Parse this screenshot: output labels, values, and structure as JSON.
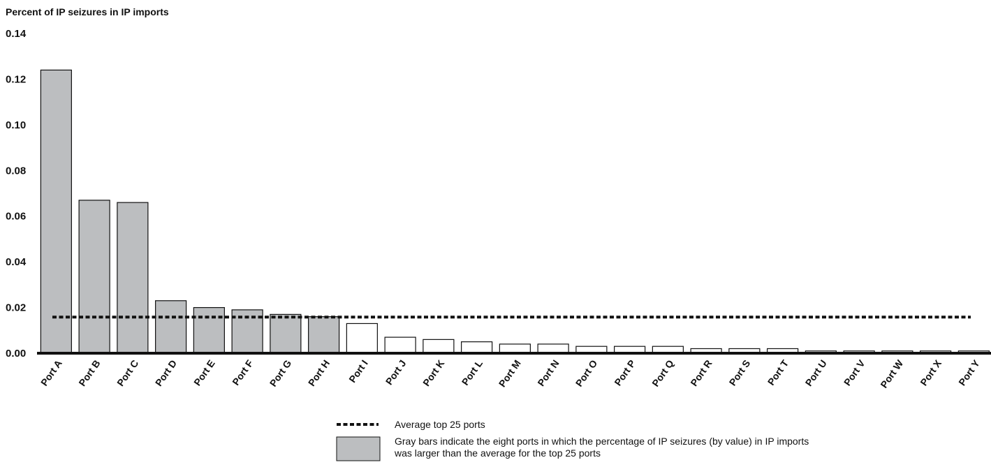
{
  "chart_data": {
    "type": "bar",
    "ylabel": "Percent of IP seizures in IP imports",
    "ylim": [
      0,
      0.14
    ],
    "y_ticks": [
      "0.00",
      "0.02",
      "0.04",
      "0.06",
      "0.08",
      "0.10",
      "0.12",
      "0.14"
    ],
    "categories": [
      "Port A",
      "Port B",
      "Port C",
      "Port D",
      "Port E",
      "Port F",
      "Port G",
      "Port H",
      "Port I",
      "Port J",
      "Port K",
      "Port L",
      "Port M",
      "Port N",
      "Port O",
      "Port P",
      "Port Q",
      "Port R",
      "Port S",
      "Port T",
      "Port U",
      "Port V",
      "Port W",
      "Port X",
      "Port Y"
    ],
    "values": [
      0.124,
      0.067,
      0.066,
      0.023,
      0.02,
      0.019,
      0.017,
      0.016,
      0.013,
      0.007,
      0.006,
      0.005,
      0.004,
      0.004,
      0.003,
      0.003,
      0.003,
      0.002,
      0.002,
      0.002,
      0.001,
      0.001,
      0.001,
      0.001,
      0.001
    ],
    "highlighted": [
      true,
      true,
      true,
      true,
      true,
      true,
      true,
      true,
      false,
      false,
      false,
      false,
      false,
      false,
      false,
      false,
      false,
      false,
      false,
      false,
      false,
      false,
      false,
      false,
      false
    ],
    "average_line": {
      "value": 0.0158,
      "label": "Average top 25 ports"
    },
    "legend": {
      "position": "bottom-center",
      "items": [
        {
          "type": "dotted-line",
          "label": "Average top 25 ports"
        },
        {
          "type": "gray-box",
          "label_lines": [
            "Gray bars indicate the eight ports in which the percentage of IP seizures (by value) in IP imports",
            "was larger than the average for the top 25 ports"
          ]
        }
      ]
    },
    "grid": false,
    "colors": {
      "highlight_fill": "#bcbec0",
      "normal_fill": "#ffffff",
      "stroke": "#111111",
      "average_line": "#111111"
    }
  }
}
